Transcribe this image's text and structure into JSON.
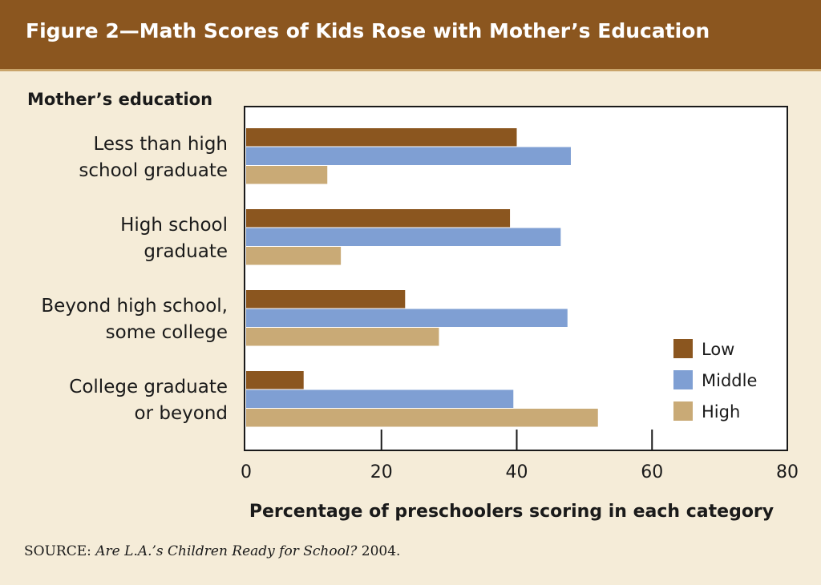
{
  "header": {
    "title": "Figure 2—Math Scores of Kids Rose with Mother’s Education"
  },
  "source": {
    "prefix": "SOURCE: ",
    "title": "Are L.A.’s Children Ready for School?",
    "year": " 2004."
  },
  "colors": {
    "header_bg": "#8b561f",
    "Low": "#8b561f",
    "Middle": "#7f9fd3",
    "High": "#c9aa76",
    "page_bg": "#f5ecd8"
  },
  "chart_data": {
    "type": "bar",
    "orientation": "horizontal",
    "title": "Figure 2—Math Scores of Kids Rose with Mother’s Education",
    "ylabel": "Mother’s education",
    "xlabel": "Percentage of preschoolers scoring in each category",
    "xlim": [
      0,
      80
    ],
    "xticks": [
      "0",
      "20",
      "40",
      "60",
      "80"
    ],
    "grid": "vertical tick marks at 20, 40, 60",
    "legend_position": "bottom-right",
    "categories": [
      [
        "Less than high",
        "school graduate"
      ],
      [
        "High school",
        "graduate"
      ],
      [
        "Beyond high school,",
        "some college"
      ],
      [
        "College graduate",
        "or beyond"
      ]
    ],
    "series": [
      {
        "name": "Low",
        "values": [
          40,
          39,
          23.5,
          8.5
        ]
      },
      {
        "name": "Middle",
        "values": [
          48,
          46.5,
          47.5,
          39.5
        ]
      },
      {
        "name": "High",
        "values": [
          12,
          14,
          28.5,
          52
        ]
      }
    ]
  }
}
